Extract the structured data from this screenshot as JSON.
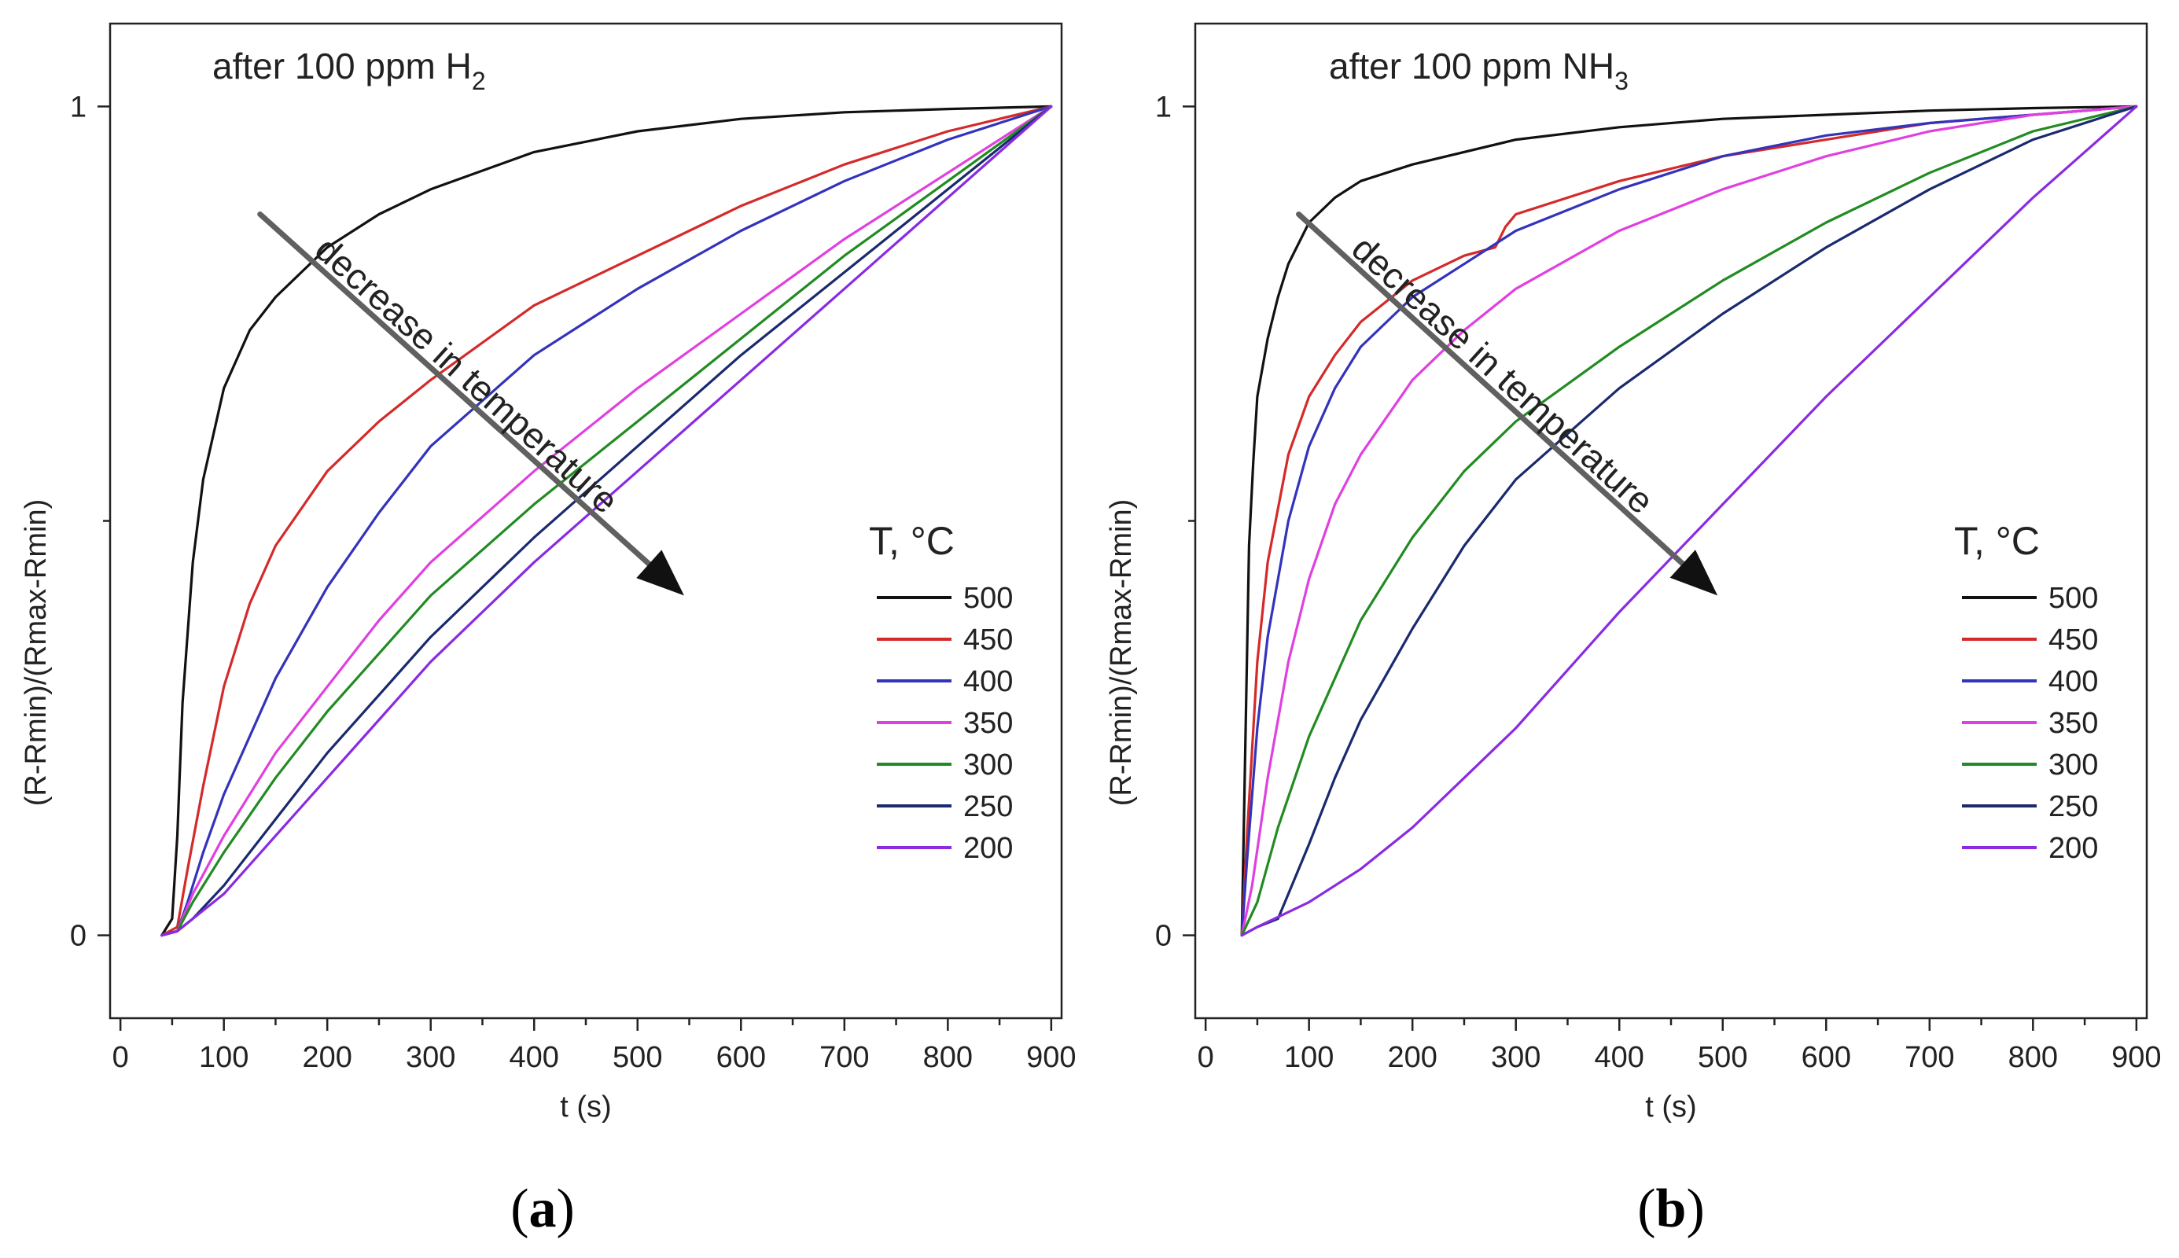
{
  "chart_data": [
    {
      "type": "line",
      "panel_label": "(a)",
      "title_main": "after 100 ppm H",
      "title_sub": "2",
      "xlabel": "t (s)",
      "ylabel": "(R-Rmin)/(Rmax-Rmin)",
      "xlim": [
        -10,
        910
      ],
      "ylim": [
        -0.1,
        1.1
      ],
      "xticks": [
        0,
        100,
        200,
        300,
        400,
        500,
        600,
        700,
        800,
        900
      ],
      "xtick_labels": [
        "0",
        "100",
        "200",
        "300",
        "400",
        "500",
        "600",
        "700",
        "800",
        "900"
      ],
      "yticks": [
        0,
        1
      ],
      "ytick_labels": [
        "0",
        "1"
      ],
      "legend_title": "T, °C",
      "annotation": "decrease in temperature",
      "arrow": {
        "from": [
          135,
          0.87
        ],
        "to": [
          545,
          0.41
        ]
      },
      "series": [
        {
          "name": "500",
          "color": "#111111",
          "x": [
            40,
            50,
            55,
            60,
            70,
            80,
            100,
            125,
            150,
            200,
            250,
            300,
            400,
            500,
            600,
            700,
            800,
            900
          ],
          "y": [
            0,
            0.02,
            0.12,
            0.28,
            0.45,
            0.55,
            0.66,
            0.73,
            0.77,
            0.83,
            0.87,
            0.9,
            0.945,
            0.97,
            0.985,
            0.993,
            0.997,
            1.0
          ]
        },
        {
          "name": "450",
          "color": "#d42a2a",
          "x": [
            40,
            55,
            65,
            80,
            100,
            125,
            150,
            200,
            250,
            300,
            400,
            500,
            600,
            700,
            800,
            900
          ],
          "y": [
            0,
            0.01,
            0.08,
            0.18,
            0.3,
            0.4,
            0.47,
            0.56,
            0.62,
            0.67,
            0.76,
            0.82,
            0.88,
            0.93,
            0.97,
            1.0
          ]
        },
        {
          "name": "400",
          "color": "#3333bb",
          "x": [
            40,
            55,
            65,
            80,
            100,
            150,
            200,
            250,
            300,
            400,
            500,
            600,
            700,
            800,
            900
          ],
          "y": [
            0,
            0.005,
            0.04,
            0.1,
            0.17,
            0.31,
            0.42,
            0.51,
            0.59,
            0.7,
            0.78,
            0.85,
            0.91,
            0.96,
            1.0
          ]
        },
        {
          "name": "350",
          "color": "#e040e0",
          "x": [
            40,
            55,
            70,
            100,
            150,
            200,
            250,
            300,
            400,
            500,
            600,
            700,
            800,
            900
          ],
          "y": [
            0,
            0.005,
            0.05,
            0.12,
            0.22,
            0.3,
            0.38,
            0.45,
            0.56,
            0.66,
            0.75,
            0.84,
            0.92,
            1.0
          ]
        },
        {
          "name": "300",
          "color": "#228b22",
          "x": [
            40,
            55,
            70,
            100,
            150,
            200,
            250,
            300,
            400,
            500,
            600,
            700,
            800,
            900
          ],
          "y": [
            0,
            0.005,
            0.04,
            0.1,
            0.19,
            0.27,
            0.34,
            0.41,
            0.52,
            0.62,
            0.72,
            0.82,
            0.91,
            1.0
          ]
        },
        {
          "name": "250",
          "color": "#1a2a6e",
          "x": [
            40,
            55,
            70,
            100,
            150,
            200,
            250,
            300,
            400,
            500,
            600,
            700,
            800,
            900
          ],
          "y": [
            0,
            0.005,
            0.02,
            0.06,
            0.14,
            0.22,
            0.29,
            0.36,
            0.48,
            0.59,
            0.7,
            0.8,
            0.9,
            1.0
          ]
        },
        {
          "name": "200",
          "color": "#8a2be2",
          "x": [
            40,
            55,
            70,
            100,
            150,
            200,
            250,
            300,
            400,
            500,
            600,
            700,
            800,
            900
          ],
          "y": [
            0,
            0.005,
            0.02,
            0.05,
            0.12,
            0.19,
            0.26,
            0.33,
            0.45,
            0.56,
            0.67,
            0.78,
            0.89,
            1.0
          ]
        }
      ]
    },
    {
      "type": "line",
      "panel_label": "(b)",
      "title_main": "after 100 ppm NH",
      "title_sub": "3",
      "xlabel": "t (s)",
      "ylabel": "(R-Rmin)/(Rmax-Rmin)",
      "xlim": [
        -10,
        910
      ],
      "ylim": [
        -0.1,
        1.1
      ],
      "xticks": [
        0,
        100,
        200,
        300,
        400,
        500,
        600,
        700,
        800,
        900
      ],
      "xtick_labels": [
        "0",
        "100",
        "200",
        "300",
        "400",
        "500",
        "600",
        "700",
        "800",
        "900"
      ],
      "yticks": [
        0,
        1
      ],
      "ytick_labels": [
        "0",
        "1"
      ],
      "legend_title": "T, °C",
      "annotation": "decrease in temperature",
      "arrow": {
        "from": [
          90,
          0.87
        ],
        "to": [
          495,
          0.41
        ]
      },
      "series": [
        {
          "name": "500",
          "color": "#111111",
          "x": [
            35,
            38,
            42,
            46,
            50,
            60,
            70,
            80,
            100,
            125,
            150,
            200,
            300,
            400,
            500,
            600,
            700,
            800,
            900
          ],
          "y": [
            0,
            0.2,
            0.47,
            0.57,
            0.65,
            0.72,
            0.77,
            0.81,
            0.86,
            0.89,
            0.91,
            0.93,
            0.96,
            0.975,
            0.985,
            0.99,
            0.995,
            0.998,
            1.0
          ]
        },
        {
          "name": "450",
          "color": "#d42a2a",
          "x": [
            35,
            40,
            50,
            60,
            80,
            100,
            125,
            150,
            200,
            250,
            280,
            290,
            300,
            350,
            400,
            500,
            600,
            700,
            800,
            900
          ],
          "y": [
            0,
            0.12,
            0.33,
            0.45,
            0.58,
            0.65,
            0.7,
            0.74,
            0.79,
            0.82,
            0.83,
            0.855,
            0.87,
            0.89,
            0.91,
            0.94,
            0.96,
            0.98,
            0.99,
            1.0
          ]
        },
        {
          "name": "400",
          "color": "#3333bb",
          "x": [
            35,
            40,
            50,
            60,
            80,
            100,
            125,
            150,
            200,
            250,
            300,
            400,
            500,
            600,
            700,
            800,
            900
          ],
          "y": [
            0,
            0.09,
            0.25,
            0.36,
            0.5,
            0.59,
            0.66,
            0.71,
            0.77,
            0.81,
            0.85,
            0.9,
            0.94,
            0.965,
            0.98,
            0.99,
            1.0
          ]
        },
        {
          "name": "350",
          "color": "#e040e0",
          "x": [
            35,
            45,
            60,
            80,
            100,
            125,
            150,
            200,
            250,
            300,
            400,
            500,
            600,
            700,
            800,
            900
          ],
          "y": [
            0,
            0.06,
            0.19,
            0.33,
            0.43,
            0.52,
            0.58,
            0.67,
            0.73,
            0.78,
            0.85,
            0.9,
            0.94,
            0.97,
            0.99,
            1.0
          ]
        },
        {
          "name": "300",
          "color": "#228b22",
          "x": [
            35,
            50,
            70,
            100,
            150,
            200,
            250,
            300,
            400,
            500,
            600,
            700,
            800,
            900
          ],
          "y": [
            0,
            0.04,
            0.13,
            0.24,
            0.38,
            0.48,
            0.56,
            0.62,
            0.71,
            0.79,
            0.86,
            0.92,
            0.97,
            1.0
          ]
        },
        {
          "name": "250",
          "color": "#1a2a6e",
          "x": [
            35,
            50,
            70,
            80,
            100,
            125,
            150,
            200,
            250,
            300,
            400,
            500,
            600,
            700,
            800,
            900
          ],
          "y": [
            0,
            0.01,
            0.02,
            0.05,
            0.11,
            0.19,
            0.26,
            0.37,
            0.47,
            0.55,
            0.66,
            0.75,
            0.83,
            0.9,
            0.96,
            1.0
          ]
        },
        {
          "name": "200",
          "color": "#8a2be2",
          "x": [
            35,
            50,
            100,
            150,
            200,
            250,
            300,
            400,
            500,
            600,
            700,
            800,
            900
          ],
          "y": [
            0,
            0.01,
            0.04,
            0.08,
            0.13,
            0.19,
            0.25,
            0.39,
            0.52,
            0.65,
            0.77,
            0.89,
            1.0
          ]
        }
      ]
    }
  ]
}
